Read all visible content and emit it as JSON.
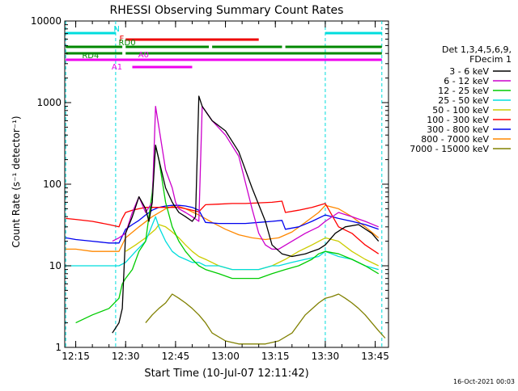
{
  "chart_data": {
    "type": "line",
    "title": "RHESSI Observing Summary Count Rates",
    "xlabel": "Start Time (10-Jul-07 12:11:42)",
    "ylabel": "Count Rate (s⁻¹ detector⁻¹)",
    "ylog": true,
    "ylim": [
      1,
      10000
    ],
    "xlim": [
      "12:11:42",
      "13:49:00"
    ],
    "x_ticks": [
      "12:15",
      "12:30",
      "12:45",
      "13:00",
      "13:15",
      "13:30",
      "13:45"
    ],
    "y_ticks": [
      "1",
      "10",
      "100",
      "1000",
      "10000"
    ],
    "legend_position": "right",
    "legend_title": [
      "Det 1,3,4,5,6,9,",
      "FDecim 1"
    ],
    "timestamp": "16-Oct-2021 00:03",
    "series": [
      {
        "name": "3 - 6 keV",
        "color": "#000000",
        "x": [
          "12:26",
          "12:28",
          "12:29",
          "12:30",
          "12:32",
          "12:34",
          "12:36",
          "12:37",
          "12:38",
          "12:39",
          "12:40",
          "12:42",
          "12:44",
          "12:46",
          "12:48",
          "12:50",
          "12:51",
          "12:52",
          "12:53",
          "12:56",
          "13:00",
          "13:04",
          "13:08",
          "13:12",
          "13:14",
          "13:17",
          "13:20",
          "13:24",
          "13:28",
          "13:30",
          "13:33",
          "13:36",
          "13:40",
          "13:44",
          "13:46"
        ],
        "y": [
          1.5,
          2,
          3,
          25,
          40,
          70,
          50,
          35,
          60,
          300,
          200,
          90,
          60,
          45,
          40,
          35,
          40,
          1200,
          900,
          600,
          450,
          250,
          90,
          35,
          18,
          14,
          13,
          14,
          16,
          18,
          25,
          30,
          32,
          25,
          20
        ]
      },
      {
        "name": "6 - 12 keV",
        "color": "#cc00cc",
        "x": [
          "12:26",
          "12:28",
          "12:30",
          "12:32",
          "12:34",
          "12:36",
          "12:38",
          "12:39",
          "12:40",
          "12:42",
          "12:44",
          "12:45",
          "12:46",
          "12:48",
          "12:50",
          "12:52",
          "12:53",
          "12:56",
          "13:00",
          "13:04",
          "13:08",
          "13:10",
          "13:12",
          "13:14",
          "13:16",
          "13:20",
          "13:24",
          "13:28",
          "13:30",
          "13:34",
          "13:38",
          "13:42",
          "13:46"
        ],
        "y": [
          20,
          22,
          25,
          45,
          70,
          45,
          60,
          900,
          500,
          150,
          90,
          60,
          50,
          45,
          40,
          35,
          900,
          600,
          400,
          220,
          50,
          25,
          18,
          16,
          16,
          20,
          25,
          30,
          35,
          45,
          40,
          35,
          30
        ]
      },
      {
        "name": "12 - 25 keV",
        "color": "#00cc00",
        "x": [
          "12:15",
          "12:20",
          "12:25",
          "12:28",
          "12:29",
          "12:30",
          "12:32",
          "12:34",
          "12:36",
          "12:38",
          "12:39",
          "12:40",
          "12:42",
          "12:44",
          "12:46",
          "12:48",
          "12:50",
          "12:52",
          "12:54",
          "12:58",
          "13:02",
          "13:06",
          "13:10",
          "13:14",
          "13:18",
          "13:22",
          "13:26",
          "13:28",
          "13:30",
          "13:34",
          "13:38",
          "13:42",
          "13:46"
        ],
        "y": [
          2,
          2.5,
          3,
          4,
          6,
          7,
          9,
          15,
          20,
          80,
          300,
          200,
          60,
          30,
          20,
          15,
          12,
          10,
          9,
          8,
          7,
          7,
          7,
          8,
          9,
          10,
          12,
          14,
          15,
          14,
          12,
          10,
          8
        ]
      },
      {
        "name": "25 - 50 keV",
        "color": "#00dddd",
        "x": [
          "12:12",
          "12:15",
          "12:20",
          "12:25",
          "12:28",
          "12:30",
          "12:33",
          "12:36",
          "12:39",
          "12:40",
          "12:42",
          "12:44",
          "12:46",
          "12:48",
          "12:50",
          "12:52",
          "12:54",
          "12:58",
          "13:02",
          "13:06",
          "13:10",
          "13:14",
          "13:16",
          "13:20",
          "13:24",
          "13:28",
          "13:30",
          "13:34",
          "13:38",
          "13:42",
          "13:46"
        ],
        "y": [
          10,
          10,
          10,
          10,
          10,
          11,
          15,
          20,
          40,
          30,
          20,
          15,
          13,
          12,
          11,
          11,
          10,
          10,
          9,
          9,
          9,
          10,
          10,
          11,
          12,
          13,
          15,
          13,
          12,
          10,
          9
        ]
      },
      {
        "name": "50 - 100 keV",
        "color": "#cccc00",
        "x": [
          "12:30",
          "12:33",
          "12:36",
          "12:39",
          "12:40",
          "12:42",
          "12:44",
          "12:46",
          "12:48",
          "12:50",
          "12:52",
          "12:54",
          "12:58",
          "13:02",
          "13:06",
          "13:10",
          "13:14",
          "13:18",
          "13:22",
          "13:26",
          "13:30",
          "13:34",
          "13:38",
          "13:42",
          "13:46"
        ],
        "y": [
          15,
          18,
          22,
          28,
          32,
          30,
          26,
          22,
          18,
          15,
          13,
          12,
          10,
          9,
          9,
          9,
          10,
          12,
          15,
          18,
          22,
          20,
          15,
          12,
          10
        ]
      },
      {
        "name": "100 - 300 keV",
        "color": "#ff0000",
        "x": [
          "12:12",
          "12:15",
          "12:20",
          "12:25",
          "12:28",
          "12:29",
          "12:30",
          "12:32",
          "12:34",
          "12:36",
          "12:38",
          "12:40",
          "12:42",
          "12:44",
          "12:46",
          "12:48",
          "12:50",
          "12:52",
          "12:54",
          "12:58",
          "13:02",
          "13:06",
          "13:10",
          "13:14",
          "13:17",
          "13:18",
          "13:22",
          "13:26",
          "13:30",
          "13:34",
          "13:38",
          "13:42",
          "13:46"
        ],
        "y": [
          38,
          37,
          35,
          32,
          30,
          38,
          45,
          48,
          50,
          52,
          52,
          52,
          52,
          52,
          52,
          50,
          48,
          46,
          56,
          57,
          58,
          58,
          59,
          60,
          62,
          45,
          48,
          52,
          58,
          30,
          25,
          18,
          14
        ]
      },
      {
        "name": "300 - 800 keV",
        "color": "#0000ee",
        "x": [
          "12:12",
          "12:15",
          "12:20",
          "12:25",
          "12:28",
          "12:30",
          "12:32",
          "12:34",
          "12:36",
          "12:38",
          "12:40",
          "12:42",
          "12:44",
          "12:46",
          "12:48",
          "12:50",
          "12:52",
          "12:54",
          "12:58",
          "13:02",
          "13:06",
          "13:10",
          "13:14",
          "13:17",
          "13:18",
          "13:22",
          "13:26",
          "13:30",
          "13:34",
          "13:38",
          "13:42",
          "13:46"
        ],
        "y": [
          22,
          21,
          20,
          19,
          19,
          28,
          32,
          36,
          42,
          48,
          52,
          54,
          55,
          55,
          54,
          52,
          48,
          34,
          33,
          33,
          33,
          34,
          35,
          36,
          28,
          30,
          35,
          42,
          38,
          35,
          32,
          28
        ]
      },
      {
        "name": "800 - 7000 keV",
        "color": "#ff8800",
        "x": [
          "12:12",
          "12:15",
          "12:20",
          "12:25",
          "12:28",
          "12:30",
          "12:34",
          "12:38",
          "12:42",
          "12:45",
          "12:48",
          "12:52",
          "12:56",
          "13:00",
          "13:04",
          "13:08",
          "13:12",
          "13:16",
          "13:20",
          "13:24",
          "13:28",
          "13:30",
          "13:34",
          "13:38",
          "13:42",
          "13:46"
        ],
        "y": [
          16,
          16,
          15,
          15,
          15,
          22,
          30,
          40,
          50,
          55,
          50,
          42,
          34,
          28,
          24,
          22,
          21,
          22,
          26,
          34,
          45,
          55,
          50,
          40,
          30,
          22
        ]
      },
      {
        "name": "7000 - 15000 keV",
        "color": "#808000",
        "x": [
          "12:36",
          "12:38",
          "12:40",
          "12:42",
          "12:44",
          "12:46",
          "12:48",
          "12:50",
          "12:52",
          "12:54",
          "12:56",
          "13:00",
          "13:04",
          "13:08",
          "13:12",
          "13:16",
          "13:20",
          "13:24",
          "13:28",
          "13:30",
          "13:32",
          "13:34",
          "13:36",
          "13:38",
          "13:40",
          "13:42",
          "13:44",
          "13:46",
          "13:48"
        ],
        "y": [
          2,
          2.5,
          3,
          3.5,
          4.5,
          4,
          3.5,
          3,
          2.5,
          2,
          1.5,
          1.2,
          1.1,
          1.1,
          1.1,
          1.2,
          1.5,
          2.5,
          3.5,
          4,
          4.2,
          4.5,
          4,
          3.5,
          3,
          2.5,
          2,
          1.6,
          1.3
        ]
      }
    ],
    "attenuator_bars": [
      {
        "label": "N",
        "color": "#00dddd",
        "segments": [
          [
            "12:12",
            "12:27"
          ],
          [
            "13:30",
            "13:47"
          ]
        ]
      },
      {
        "label": "F",
        "color": "#ee0000",
        "segments": [
          [
            "12:30",
            "13:10"
          ]
        ]
      },
      {
        "label": "RD0",
        "color": "#008800",
        "segments": [
          [
            "12:12",
            "12:29"
          ],
          [
            "12:30",
            "12:55"
          ],
          [
            "12:56",
            "13:17"
          ],
          [
            "13:18",
            "13:47"
          ]
        ]
      },
      {
        "label": "RD4",
        "color": "#008800",
        "segments": [
          [
            "12:12",
            "12:29"
          ],
          [
            "12:30",
            "13:47"
          ]
        ]
      },
      {
        "label": "A0",
        "color": "#ee00ee",
        "segments": [
          [
            "12:12",
            "13:47"
          ]
        ]
      },
      {
        "label": "A1",
        "color": "#ee00ee",
        "segments": [
          [
            "12:32",
            "12:50"
          ]
        ]
      }
    ]
  }
}
